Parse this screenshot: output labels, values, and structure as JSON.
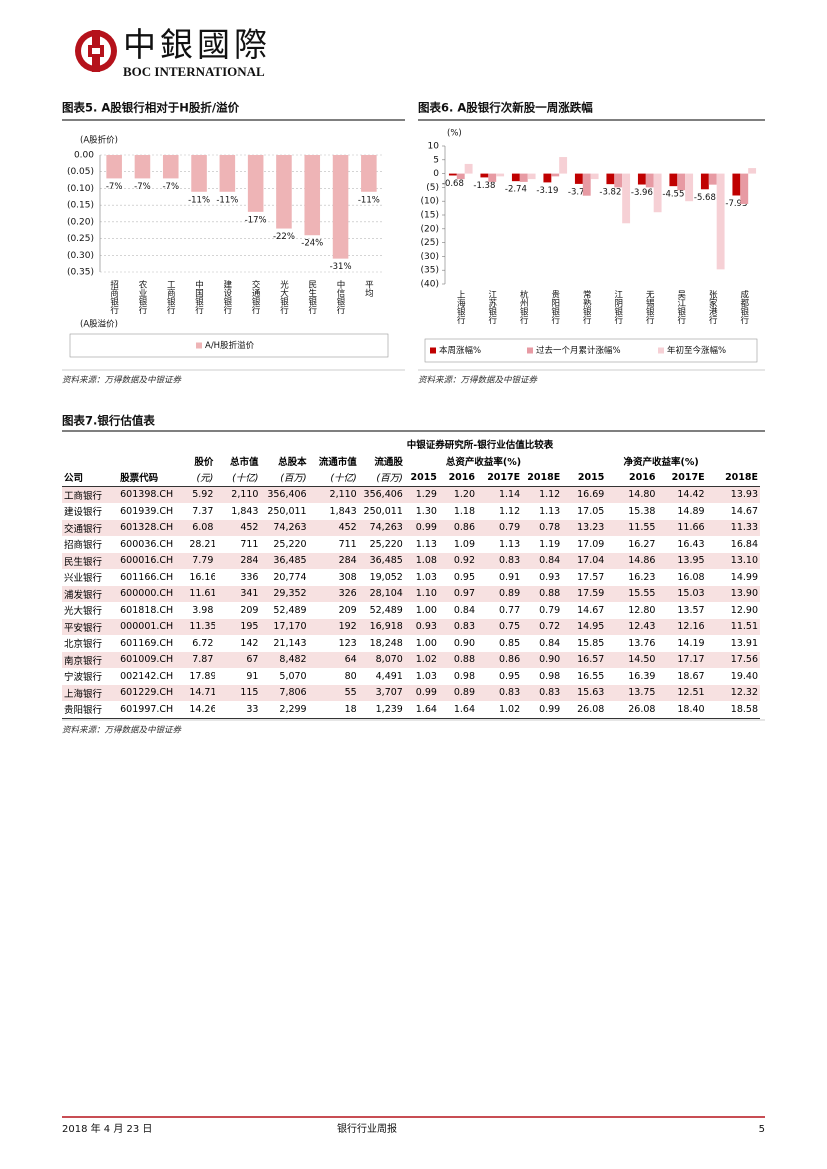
{
  "header": {
    "logo_text": "中銀國際",
    "logo_subtext": "BOC INTERNATIONAL"
  },
  "chart_data": [
    {
      "type": "bar",
      "title": "图表5. A股银行相对于H股折/溢价",
      "ylabel_top": "(A股折价)",
      "ylabel_bottom": "(A股溢价)",
      "categories": [
        "招商银行",
        "农业银行",
        "工商银行",
        "中国银行",
        "建设银行",
        "交通银行",
        "光大银行",
        "民生银行",
        "中信银行",
        "平均"
      ],
      "series": [
        {
          "name": "A/H股折溢价",
          "color": "#eeb4b6",
          "labels": true,
          "values": [
            -0.07,
            -0.07,
            -0.07,
            -0.11,
            -0.11,
            -0.17,
            -0.22,
            -0.24,
            -0.31,
            -0.11
          ],
          "value_labels": [
            "-7%",
            "-7%",
            "-7%",
            "-11%",
            "-11%",
            "-17%",
            "-22%",
            "-24%",
            "-31%",
            "-11%"
          ]
        }
      ],
      "ylim": [
        -0.35,
        0
      ],
      "yticks": [
        {
          "value": 0,
          "label": "0.00"
        },
        {
          "value": -0.05,
          "label": "(0.05)"
        },
        {
          "value": -0.1,
          "label": "(0.10)"
        },
        {
          "value": -0.15,
          "label": "(0.15)"
        },
        {
          "value": -0.2,
          "label": "(0.20)"
        },
        {
          "value": -0.25,
          "label": "(0.25)"
        },
        {
          "value": -0.3,
          "label": "(0.30)"
        },
        {
          "value": -0.35,
          "label": "(0.35)"
        }
      ],
      "grid": true,
      "source": "资料来源：万得数据及中银证券"
    },
    {
      "type": "bar",
      "title": "图表6. A股银行次新股一周涨跌幅",
      "ylabel_top": "(%)",
      "categories": [
        "上海银行",
        "江苏银行",
        "杭州银行",
        "贵阳银行",
        "常熟银行",
        "江阴银行",
        "无锡银行",
        "吴江银行",
        "张家港行",
        "成都银行"
      ],
      "series": [
        {
          "name": "本周涨幅%",
          "color": "#c00000",
          "labels": true,
          "values": [
            -0.68,
            -1.38,
            -2.74,
            -3.19,
            -3.73,
            -3.82,
            -3.96,
            -4.55,
            -5.68,
            -7.93
          ]
        },
        {
          "name": "过去一个月累计涨幅%",
          "color": "#e79aa3",
          "labels": false,
          "values": [
            -2,
            -3,
            -3,
            -1,
            -8,
            -5,
            -5,
            -6,
            -4,
            -11
          ]
        },
        {
          "name": "年初至今涨幅%",
          "color": "#f6d0d5",
          "labels": false,
          "values": [
            3.5,
            -1,
            -2,
            6,
            -2,
            -18,
            -14,
            -10,
            -34.7,
            2
          ]
        }
      ],
      "ylim": [
        -40,
        10
      ],
      "yticks": [
        10,
        5,
        0,
        {
          "value": -5,
          "label": "(5)"
        },
        {
          "value": -10,
          "label": "(10)"
        },
        {
          "value": -15,
          "label": "(15)"
        },
        {
          "value": -20,
          "label": "(20)"
        },
        {
          "value": -25,
          "label": "(25)"
        },
        {
          "value": -30,
          "label": "(30)"
        },
        {
          "value": -35,
          "label": "(35)"
        },
        {
          "value": -40,
          "label": "(40)"
        }
      ],
      "grid": false,
      "source": "资料来源：万得数据及中银证券"
    }
  ],
  "table": {
    "figure_title": "图表7.银行估值表",
    "title": "中银证券研究所-银行业估值比较表",
    "header_row1": [
      "股价",
      "总市值",
      "总股本",
      "流通市值",
      "流通股"
    ],
    "group_headers": [
      "总资产收益率(%)",
      "净资产收益率(%)"
    ],
    "header_row2": [
      "公司",
      "股票代码",
      "(元)",
      "(十亿)",
      "(百万)",
      "(十亿)",
      "(百万)",
      "2015",
      "2016",
      "2017E",
      "2018E",
      "2015",
      "2016",
      "2017E",
      "2018E"
    ],
    "rows": [
      [
        "工商银行",
        "601398.CH",
        "5.92",
        "2,110",
        "356,406",
        "2,110",
        "356,406",
        "1.29",
        "1.20",
        "1.14",
        "1.12",
        "16.69",
        "14.80",
        "14.42",
        "13.93"
      ],
      [
        "建设银行",
        "601939.CH",
        "7.37",
        "1,843",
        "250,011",
        "1,843",
        "250,011",
        "1.30",
        "1.18",
        "1.12",
        "1.13",
        "17.05",
        "15.38",
        "14.89",
        "14.67"
      ],
      [
        "交通银行",
        "601328.CH",
        "6.08",
        "452",
        "74,263",
        "452",
        "74,263",
        "0.99",
        "0.86",
        "0.79",
        "0.78",
        "13.23",
        "11.55",
        "11.66",
        "11.33"
      ],
      [
        "招商银行",
        "600036.CH",
        "28.21",
        "711",
        "25,220",
        "711",
        "25,220",
        "1.13",
        "1.09",
        "1.13",
        "1.19",
        "17.09",
        "16.27",
        "16.43",
        "16.84"
      ],
      [
        "民生银行",
        "600016.CH",
        "7.79",
        "284",
        "36,485",
        "284",
        "36,485",
        "1.08",
        "0.92",
        "0.83",
        "0.84",
        "17.04",
        "14.86",
        "13.95",
        "13.10"
      ],
      [
        "兴业银行",
        "601166.CH",
        "16.16",
        "336",
        "20,774",
        "308",
        "19,052",
        "1.03",
        "0.95",
        "0.91",
        "0.93",
        "17.57",
        "16.23",
        "16.08",
        "14.99"
      ],
      [
        "浦发银行",
        "600000.CH",
        "11.61",
        "341",
        "29,352",
        "326",
        "28,104",
        "1.10",
        "0.97",
        "0.89",
        "0.88",
        "17.59",
        "15.55",
        "15.03",
        "13.90"
      ],
      [
        "光大银行",
        "601818.CH",
        "3.98",
        "209",
        "52,489",
        "209",
        "52,489",
        "1.00",
        "0.84",
        "0.77",
        "0.79",
        "14.67",
        "12.80",
        "13.57",
        "12.90"
      ],
      [
        "平安银行",
        "000001.CH",
        "11.35",
        "195",
        "17,170",
        "192",
        "16,918",
        "0.93",
        "0.83",
        "0.75",
        "0.72",
        "14.95",
        "12.43",
        "12.16",
        "11.51"
      ],
      [
        "北京银行",
        "601169.CH",
        "6.72",
        "142",
        "21,143",
        "123",
        "18,248",
        "1.00",
        "0.90",
        "0.85",
        "0.84",
        "15.85",
        "13.76",
        "14.19",
        "13.91"
      ],
      [
        "南京银行",
        "601009.CH",
        "7.87",
        "67",
        "8,482",
        "64",
        "8,070",
        "1.02",
        "0.88",
        "0.86",
        "0.90",
        "16.57",
        "14.50",
        "17.17",
        "17.56"
      ],
      [
        "宁波银行",
        "002142.CH",
        "17.89",
        "91",
        "5,070",
        "80",
        "4,491",
        "1.03",
        "0.98",
        "0.95",
        "0.98",
        "16.55",
        "16.39",
        "18.67",
        "19.40"
      ],
      [
        "上海银行",
        "601229.CH",
        "14.71",
        "115",
        "7,806",
        "55",
        "3,707",
        "0.99",
        "0.89",
        "0.83",
        "0.83",
        "15.63",
        "13.75",
        "12.51",
        "12.32"
      ],
      [
        "贵阳银行",
        "601997.CH",
        "14.26",
        "33",
        "2,299",
        "18",
        "1,239",
        "1.64",
        "1.64",
        "1.02",
        "0.99",
        "26.08",
        "26.08",
        "18.40",
        "18.58"
      ]
    ],
    "source": "资料来源：万得数据及中银证券"
  },
  "footer": {
    "date": "2018 年 4 月 23 日",
    "report": "银行行业周报",
    "page": "5"
  }
}
